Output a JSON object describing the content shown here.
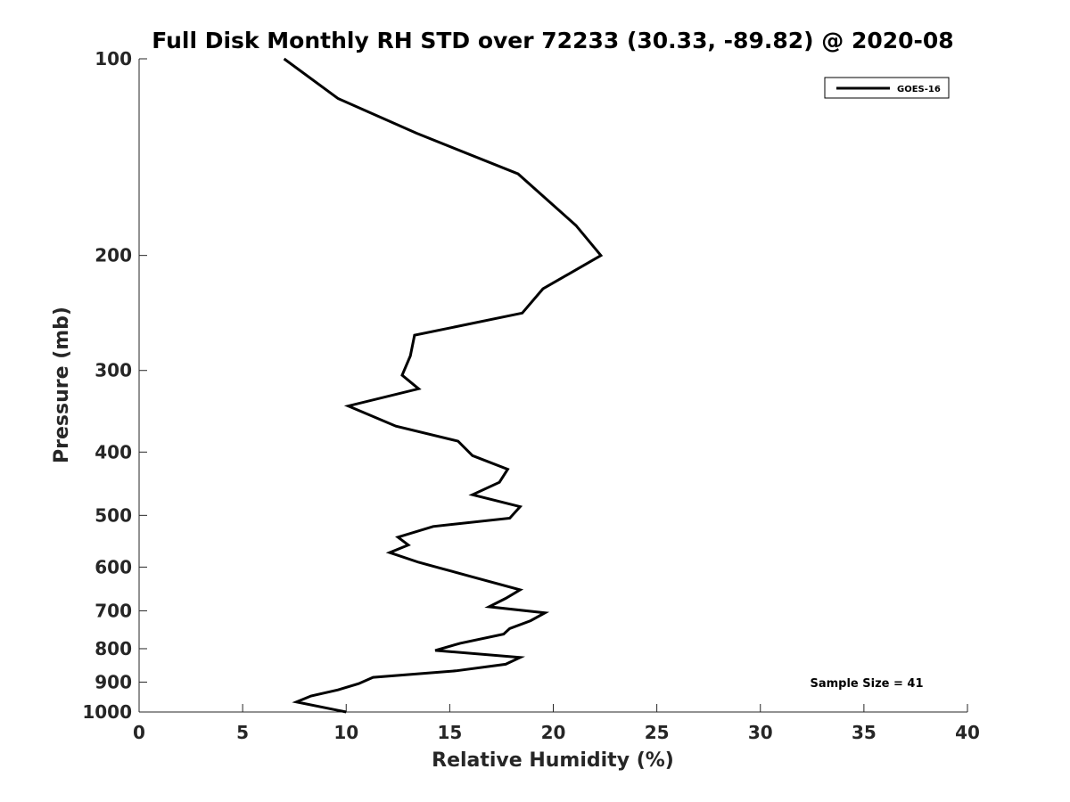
{
  "chart_data": {
    "type": "line",
    "title": "Full Disk Monthly RH STD over 72233 (30.33, -89.82) @ 2020-08",
    "xlabel": "Relative Humidity (%)",
    "ylabel": "Pressure (mb)",
    "xlim": [
      0,
      40
    ],
    "ylim": [
      100,
      1000
    ],
    "yscale": "log",
    "yreversed": true,
    "xticks": [
      0,
      5,
      10,
      15,
      20,
      25,
      30,
      35,
      40
    ],
    "xtick_labels": [
      "0",
      "5",
      "10",
      "15",
      "20",
      "25",
      "30",
      "35",
      "40"
    ],
    "yticks": [
      100,
      200,
      300,
      400,
      500,
      600,
      700,
      800,
      900,
      1000
    ],
    "ytick_labels": [
      "100",
      "200",
      "300",
      "400",
      "500",
      "600",
      "700",
      "800",
      "900",
      "1000"
    ],
    "grid": false,
    "legend_position": "top-right",
    "annotation": "Sample Size = 41",
    "series": [
      {
        "name": "GOES-16",
        "color": "#000000",
        "x": [
          7.0,
          9.6,
          13.4,
          18.3,
          21.1,
          22.3,
          19.5,
          18.5,
          13.3,
          13.1,
          12.7,
          13.5,
          10.1,
          12.4,
          15.4,
          16.1,
          17.8,
          17.4,
          16.1,
          18.4,
          17.9,
          14.2,
          12.5,
          13.0,
          12.1,
          13.5,
          16.0,
          18.4,
          17.7,
          16.9,
          19.6,
          18.9,
          17.9,
          17.6,
          15.5,
          14.3,
          18.4,
          17.7,
          15.3,
          11.3,
          10.6,
          9.6,
          8.3,
          7.6,
          10.0
        ],
        "y": [
          100,
          115,
          130,
          150,
          180,
          200,
          225,
          245,
          265,
          285,
          305,
          320,
          340,
          365,
          385,
          405,
          425,
          445,
          465,
          485,
          505,
          520,
          540,
          555,
          570,
          590,
          620,
          650,
          670,
          690,
          705,
          725,
          745,
          760,
          785,
          805,
          825,
          845,
          865,
          885,
          905,
          925,
          945,
          965,
          1000
        ]
      }
    ]
  }
}
